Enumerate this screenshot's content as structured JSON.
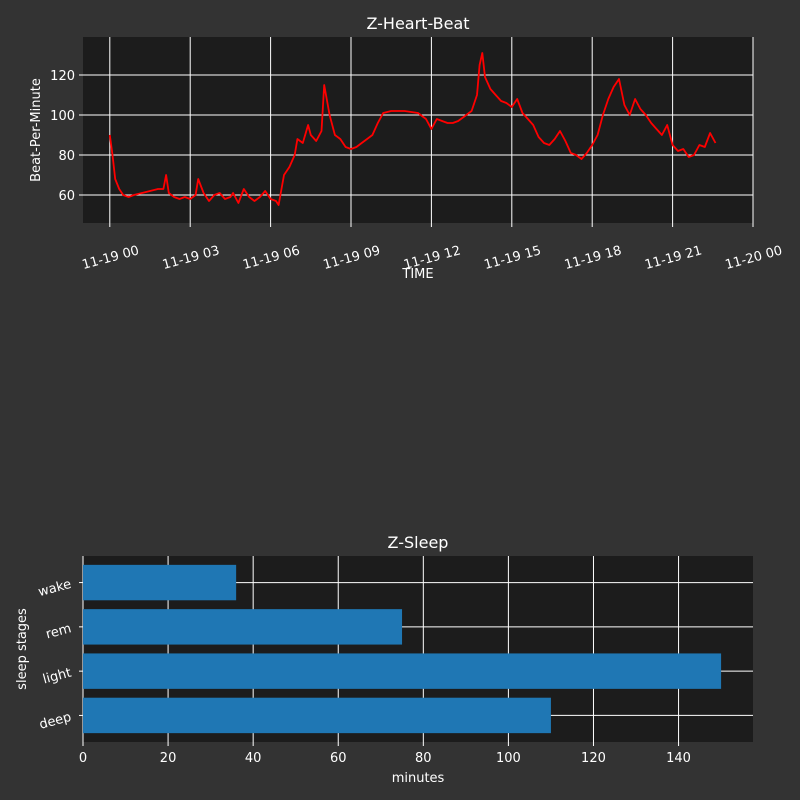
{
  "theme": {
    "figure_bg": "#333333",
    "axes_bg": "#1c1c1c",
    "grid_color": "#ffffff",
    "text_color": "#ffffff",
    "line_color": "#ff0000",
    "bar_color": "#1f77b4"
  },
  "chart_data": [
    {
      "type": "line",
      "title": "Z-Heart-Beat",
      "xlabel": "TIME",
      "ylabel": "Beat-Per-Minute",
      "grid": true,
      "x_ticks": [
        {
          "label": "11-19 00",
          "hour": 0
        },
        {
          "label": "11-19 03",
          "hour": 3
        },
        {
          "label": "11-19 06",
          "hour": 6
        },
        {
          "label": "11-19 09",
          "hour": 9
        },
        {
          "label": "11-19 12",
          "hour": 12
        },
        {
          "label": "11-19 15",
          "hour": 15
        },
        {
          "label": "11-19 18",
          "hour": 18
        },
        {
          "label": "11-19 21",
          "hour": 21
        },
        {
          "label": "11-20 00",
          "hour": 24
        }
      ],
      "y_ticks": [
        60,
        80,
        100,
        120
      ],
      "xlim": [
        -1.0,
        24.0
      ],
      "ylim": [
        46,
        139
      ],
      "series": [
        {
          "x": [
            0.0,
            0.1,
            0.2,
            0.35,
            0.5,
            0.7,
            0.9,
            1.2,
            1.5,
            1.8,
            2.0,
            2.1,
            2.2,
            2.4,
            2.6,
            2.8,
            3.0,
            3.2,
            3.3,
            3.5,
            3.7,
            3.9,
            4.1,
            4.3,
            4.5,
            4.6,
            4.8,
            5.0,
            5.2,
            5.4,
            5.6,
            5.8,
            6.0,
            6.2,
            6.3,
            6.5,
            6.7,
            6.9,
            7.0,
            7.2,
            7.4,
            7.5,
            7.7,
            7.9,
            8.0,
            8.2,
            8.4,
            8.6,
            8.8,
            9.0,
            9.2,
            9.4,
            9.6,
            9.8,
            10.0,
            10.2,
            10.5,
            11.0,
            11.5,
            11.8,
            12.0,
            12.2,
            12.4,
            12.6,
            12.8,
            13.0,
            13.2,
            13.5,
            13.7,
            13.8,
            13.9,
            14.0,
            14.2,
            14.4,
            14.6,
            14.8,
            15.0,
            15.2,
            15.4,
            15.6,
            15.8,
            16.0,
            16.2,
            16.4,
            16.6,
            16.8,
            17.0,
            17.2,
            17.4,
            17.6,
            17.8,
            18.0,
            18.2,
            18.4,
            18.6,
            18.8,
            19.0,
            19.2,
            19.4,
            19.6,
            19.8,
            20.0,
            20.2,
            20.4,
            20.6,
            20.8,
            21.0,
            21.2,
            21.4,
            21.6,
            21.8,
            22.0,
            22.2,
            22.4,
            22.6
          ],
          "values": [
            90,
            80,
            68,
            63,
            60,
            59,
            60,
            61,
            62,
            63,
            63,
            70,
            61,
            59,
            58,
            59,
            58,
            60,
            68,
            61,
            57,
            60,
            61,
            58,
            59,
            61,
            56,
            63,
            59,
            57,
            59,
            62,
            58,
            57,
            55,
            70,
            74,
            80,
            88,
            86,
            95,
            90,
            87,
            92,
            115,
            100,
            90,
            88,
            84,
            83,
            84,
            86,
            88,
            90,
            96,
            101,
            102,
            102,
            101,
            98,
            93,
            98,
            97,
            96,
            96,
            97,
            99,
            102,
            110,
            125,
            131,
            119,
            113,
            110,
            107,
            106,
            104,
            108,
            101,
            98,
            95,
            89,
            86,
            85,
            88,
            92,
            87,
            81,
            80,
            78,
            81,
            85,
            90,
            100,
            108,
            114,
            118,
            105,
            100,
            108,
            103,
            100,
            96,
            93,
            90,
            95,
            85,
            82,
            83,
            79,
            80,
            85,
            84,
            91,
            86
          ]
        }
      ]
    },
    {
      "type": "bar",
      "orientation": "horizontal",
      "title": "Z-Sleep",
      "xlabel": "minutes",
      "ylabel": "sleep stages",
      "grid": true,
      "categories": [
        "deep",
        "light",
        "rem",
        "wake"
      ],
      "values": [
        110,
        150,
        75,
        36
      ],
      "x_ticks": [
        0,
        20,
        40,
        60,
        80,
        100,
        120,
        140
      ],
      "xlim": [
        0,
        157.5
      ]
    }
  ]
}
